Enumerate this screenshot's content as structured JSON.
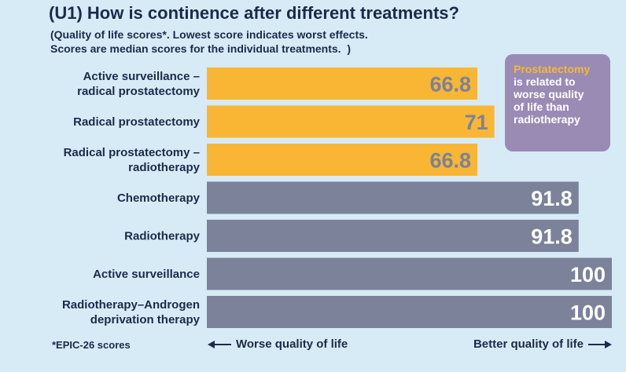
{
  "title": "(U1) How is continence after different treatments?",
  "subtitle_line1": "(Quality of life scores*. Lowest score indicates worst effects.",
  "subtitle_line2": "Scores are median scores for the individual treatments.  )",
  "callout": {
    "highlight": "Prostatectomy",
    "line1": "is related to",
    "line2": "worse quality",
    "line3": "of life than",
    "line4": "radiotherapy"
  },
  "footnote": "*EPIC-26 scores",
  "axis_left_label": "Worse quality of life",
  "axis_right_label": "Better quality of life",
  "colors": {
    "background": "#d7ebf7",
    "surgery_bar": "#f9b634",
    "other_bar": "#7b8299",
    "surgery_value_text": "#7b8299",
    "other_value_text": "#ffffff",
    "callout_bg": "#9a8bb5"
  },
  "chart_data": {
    "type": "bar",
    "orientation": "horizontal",
    "categories": [
      [
        "Active surveillance –",
        "radical prostatectomy"
      ],
      [
        "Radical prostatectomy"
      ],
      [
        "Radical prostatectomy –",
        "radiotherapy"
      ],
      [
        "Chemotherapy"
      ],
      [
        "Radiotherapy"
      ],
      [
        "Active surveillance"
      ],
      [
        "Radiotherapy–Androgen",
        "deprivation therapy"
      ]
    ],
    "values": [
      66.8,
      71,
      66.8,
      91.8,
      91.8,
      100,
      100
    ],
    "value_labels": [
      "66.8",
      "71",
      "66.8",
      "91.8",
      "91.8",
      "100",
      "100"
    ],
    "group": [
      "surgery",
      "surgery",
      "surgery",
      "other",
      "other",
      "other",
      "other"
    ],
    "xlim": [
      0,
      100
    ],
    "grid": false,
    "legend": "none"
  }
}
